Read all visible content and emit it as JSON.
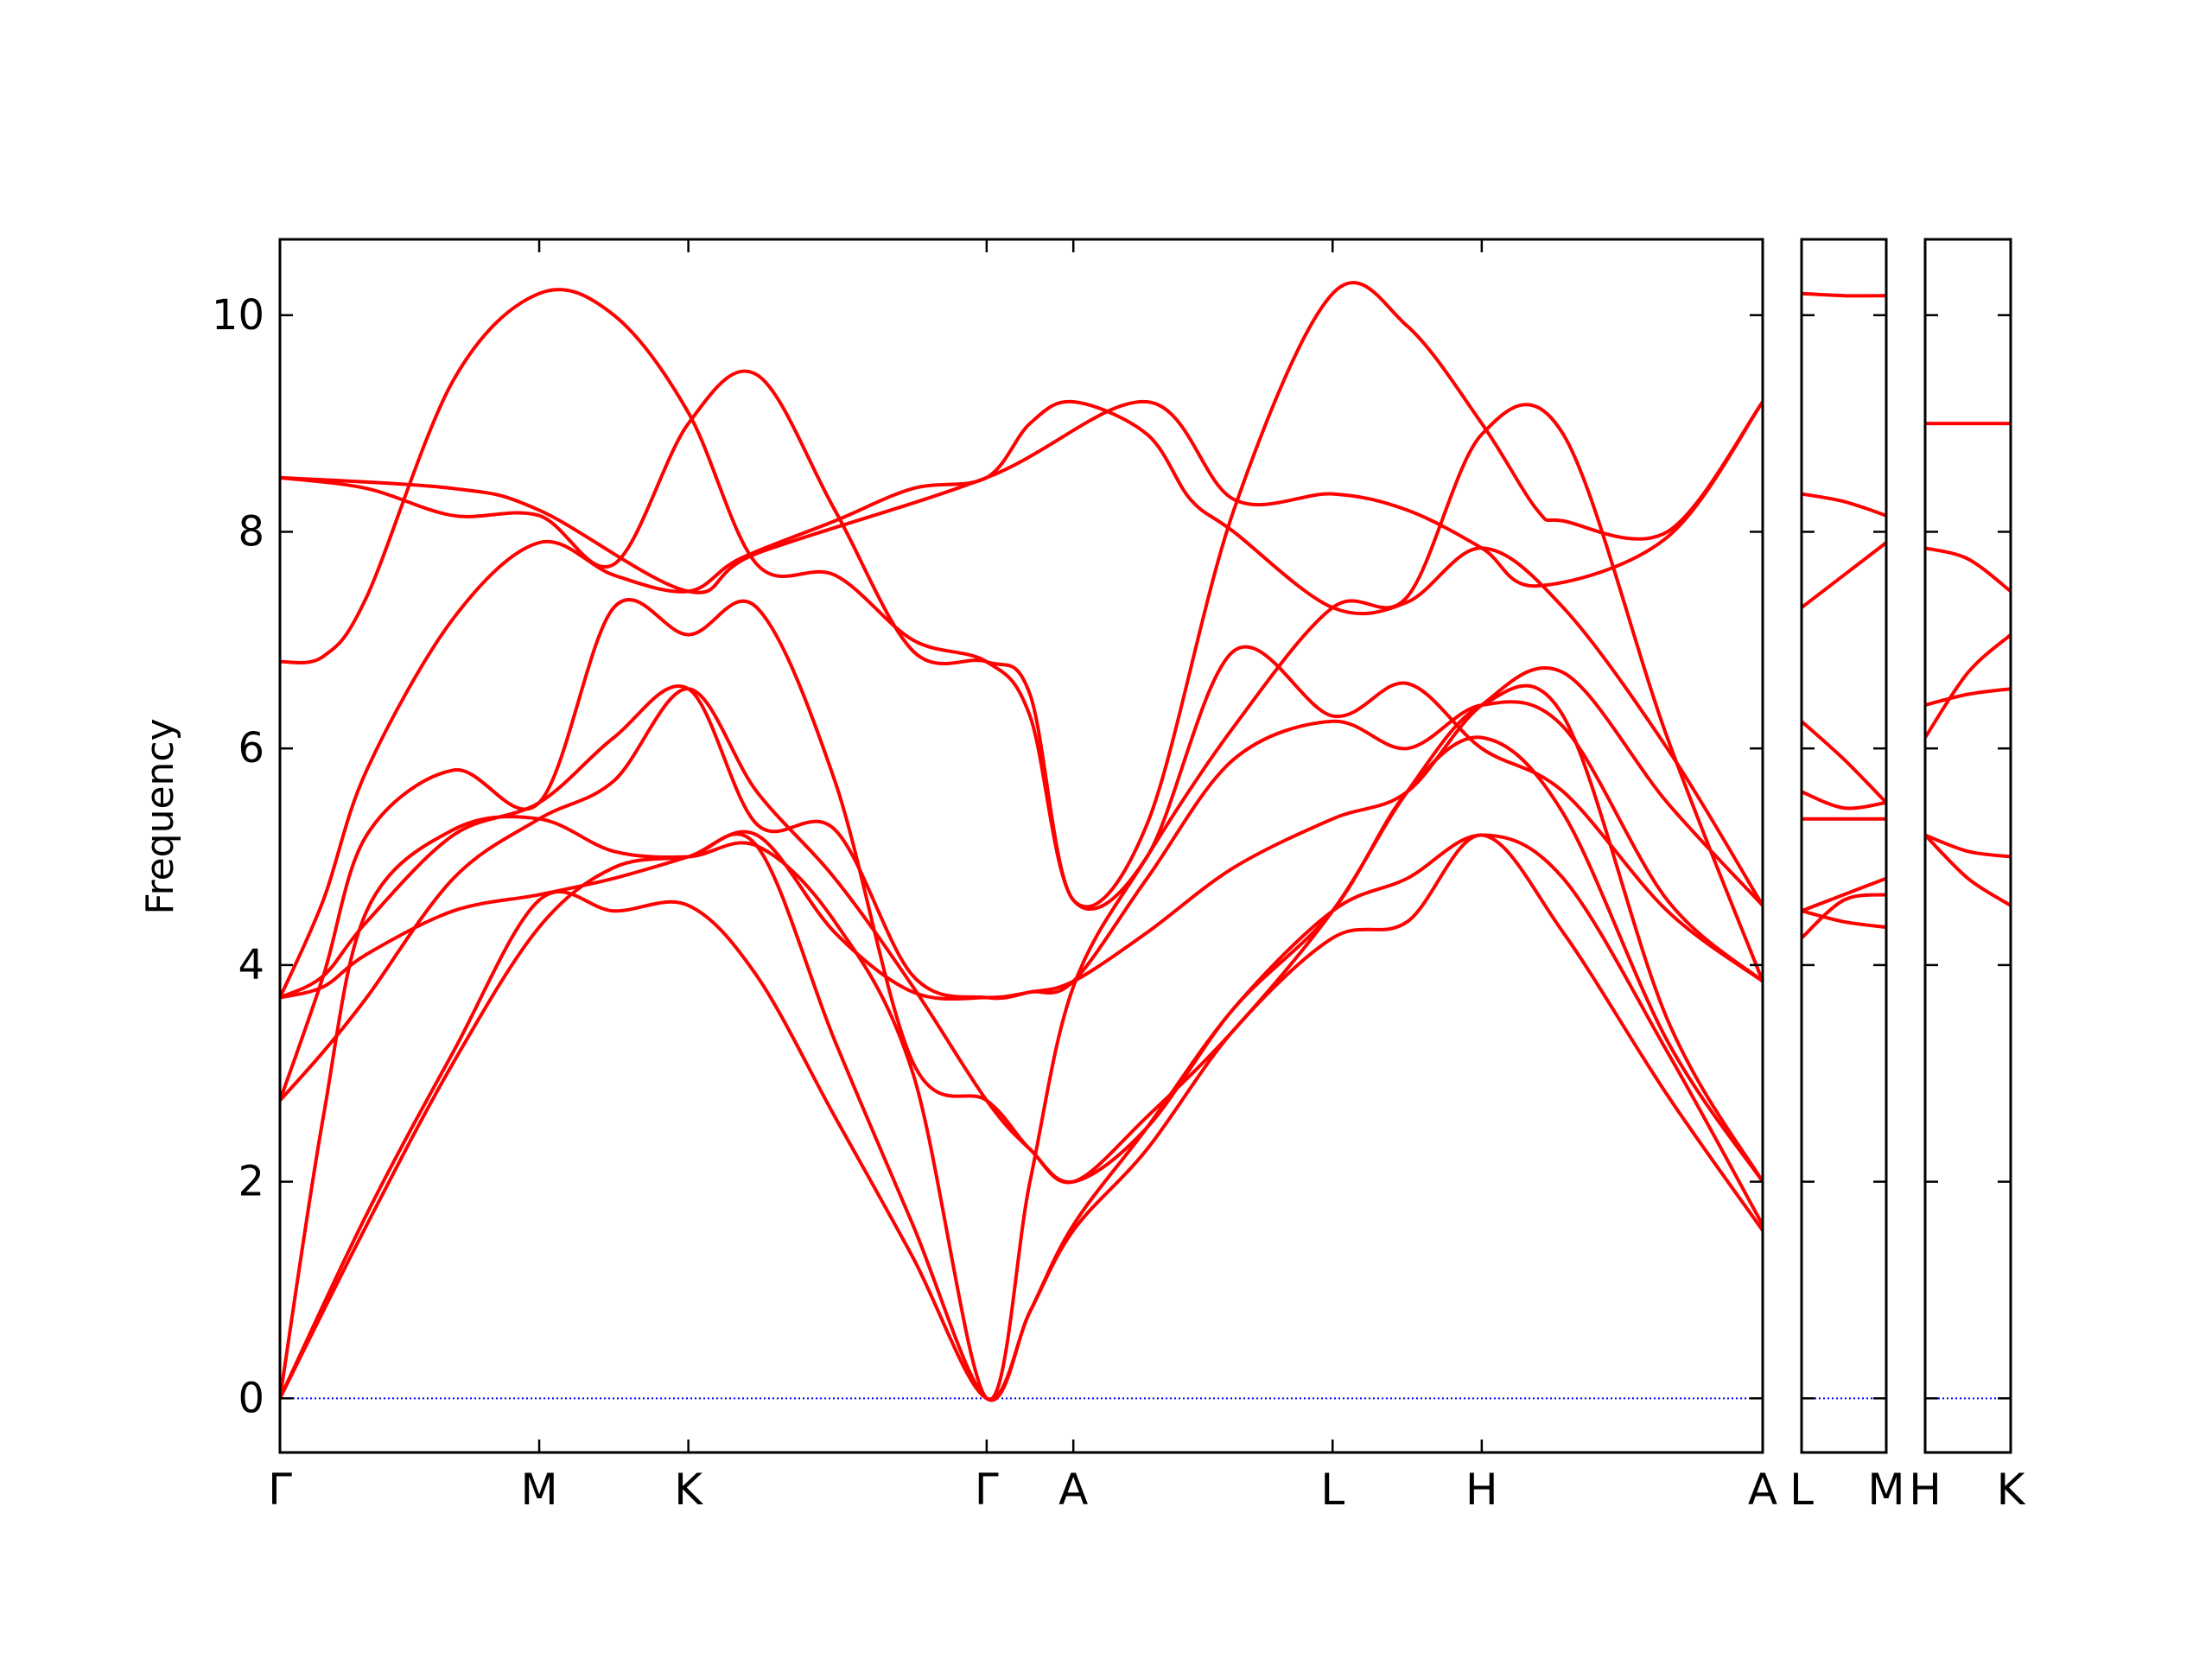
{
  "chart_data": {
    "type": "line",
    "ylabel": "Frequency",
    "ylim": [
      -0.5,
      10.7
    ],
    "yticks": [
      0,
      2,
      4,
      6,
      8,
      10
    ],
    "ytick_labels": [
      "0",
      "2",
      "4",
      "6",
      "8",
      "10"
    ],
    "grid": false,
    "line_color": "#ff0000",
    "zero_line_color": "#0000ff",
    "panels": [
      {
        "range": [
          0,
          1.71
        ],
        "ticks": [
          {
            "x": 0,
            "label": "Γ"
          },
          {
            "x": 0.299,
            "label": "M"
          },
          {
            "x": 0.471,
            "label": "K"
          },
          {
            "x": 0.815,
            "label": "Γ"
          },
          {
            "x": 0.915,
            "label": "A"
          },
          {
            "x": 1.214,
            "label": "L"
          },
          {
            "x": 1.386,
            "label": "H"
          },
          {
            "x": 1.71,
            "label": "A"
          }
        ],
        "series": [
          {
            "x": [
              0,
              0.1,
              0.2,
              0.299,
              0.385,
              0.471,
              0.55,
              0.64,
              0.73,
              0.815,
              0.865,
              0.915,
              1.0,
              1.1,
              1.214,
              1.3,
              1.386,
              1.48,
              1.6,
              1.71
            ],
            "y": [
              0,
              1.6,
              3.1,
              4.35,
              4.9,
              5.0,
              5.1,
              3.3,
              1.6,
              0,
              0.8,
              1.55,
              2.3,
              3.4,
              4.25,
              4.4,
              5.2,
              4.3,
              2.8,
              1.55
            ]
          },
          {
            "x": [
              0,
              0.1,
              0.2,
              0.299,
              0.385,
              0.471,
              0.55,
              0.64,
              0.73,
              0.815,
              0.865,
              0.915,
              1.0,
              1.1,
              1.214,
              1.3,
              1.386,
              1.48,
              1.6,
              1.71
            ],
            "y": [
              0,
              1.7,
              3.2,
              4.6,
              4.5,
              4.55,
              3.9,
              2.6,
              1.3,
              0,
              0.8,
              1.6,
              2.5,
              3.6,
              4.5,
              4.8,
              5.2,
              4.8,
              3.2,
              1.6
            ]
          },
          {
            "x": [
              0,
              0.05,
              0.1,
              0.2,
              0.299,
              0.385,
              0.471,
              0.55,
              0.64,
              0.73,
              0.815,
              0.865,
              0.915,
              1.0,
              1.1,
              1.214,
              1.3,
              1.386,
              1.48,
              1.6,
              1.71
            ],
            "y": [
              0,
              2.6,
              4.5,
              5.25,
              5.35,
              5.05,
              5.0,
              5.1,
              4.4,
              3.0,
              0,
              2.0,
              3.8,
              5.0,
              6.2,
              7.3,
              7.4,
              8.9,
              8.9,
              6.1,
              3.85
            ]
          },
          {
            "x": [
              0,
              0.05,
              0.1,
              0.2,
              0.299,
              0.385,
              0.471,
              0.55,
              0.64,
              0.73,
              0.815,
              0.865,
              0.915,
              1.0,
              1.1,
              1.214,
              1.3,
              1.386,
              1.48,
              1.6,
              1.71
            ],
            "y": [
              3.7,
              3.8,
              4.1,
              4.5,
              4.65,
              4.8,
              5.0,
              5.2,
              4.3,
              3.75,
              3.7,
              3.75,
              3.85,
              4.3,
              4.9,
              5.35,
              5.6,
              6.4,
              6.7,
              5.5,
              4.55
            ]
          },
          {
            "x": [
              0,
              0.05,
              0.1,
              0.2,
              0.299,
              0.385,
              0.471,
              0.55,
              0.64,
              0.73,
              0.815,
              0.865,
              0.915,
              1.0,
              1.1,
              1.214,
              1.3,
              1.386,
              1.48,
              1.6,
              1.71
            ],
            "y": [
              3.7,
              3.9,
              4.4,
              5.2,
              5.5,
              6.1,
              6.55,
              5.3,
              5.25,
              3.9,
              3.7,
              3.75,
              3.85,
              4.8,
              5.9,
              6.25,
              6.0,
              6.4,
              6.2,
              4.6,
              3.85
            ]
          },
          {
            "x": [
              0,
              0.05,
              0.1,
              0.2,
              0.299,
              0.385,
              0.471,
              0.55,
              0.64,
              0.73,
              0.815,
              0.865,
              0.915,
              1.0,
              1.1,
              1.214,
              1.3,
              1.386,
              1.48,
              1.6,
              1.71
            ],
            "y": [
              2.75,
              3.2,
              3.7,
              4.8,
              5.35,
              5.7,
              6.55,
              5.6,
              4.8,
              3.8,
              2.75,
              2.3,
              2.0,
              2.5,
              3.6,
              4.5,
              5.6,
              6.1,
              5.4,
              3.3,
              2.0
            ]
          },
          {
            "x": [
              0,
              0.05,
              0.1,
              0.2,
              0.299,
              0.385,
              0.471,
              0.55,
              0.64,
              0.73,
              0.815,
              0.865,
              0.915,
              1.0,
              1.1,
              1.214,
              1.3,
              1.386,
              1.48,
              1.6,
              1.71
            ],
            "y": [
              2.75,
              3.9,
              5.2,
              5.8,
              5.5,
              7.3,
              7.05,
              7.3,
              5.7,
              3.1,
              2.75,
              2.3,
              2.0,
              2.6,
              3.4,
              4.5,
              5.6,
              6.4,
              6.3,
              3.5,
              2.0
            ]
          },
          {
            "x": [
              0,
              0.05,
              0.1,
              0.2,
              0.299,
              0.385,
              0.471,
              0.55,
              0.64,
              0.73,
              0.815,
              0.865,
              0.915,
              1.0,
              1.1,
              1.214,
              1.3,
              1.386,
              1.48,
              1.6,
              1.71
            ],
            "y": [
              6.8,
              6.85,
              7.4,
              9.4,
              10.2,
              10.0,
              9.1,
              7.7,
              7.6,
              7.0,
              6.8,
              6.3,
              4.6,
              5.0,
              6.9,
              6.3,
              6.6,
              6.0,
              5.6,
              4.5,
              3.85
            ]
          },
          {
            "x": [
              0,
              0.05,
              0.1,
              0.2,
              0.299,
              0.385,
              0.471,
              0.53,
              0.64,
              0.73,
              0.815,
              0.865,
              0.915,
              1.0,
              1.05,
              1.1,
              1.214,
              1.3,
              1.386,
              1.48,
              1.6,
              1.71
            ],
            "y": [
              3.7,
              4.6,
              5.8,
              7.2,
              7.9,
              7.6,
              7.45,
              7.75,
              8.1,
              8.4,
              8.5,
              9.0,
              9.2,
              8.9,
              8.3,
              8.0,
              7.3,
              7.35,
              7.85,
              7.3,
              6.0,
              4.55
            ]
          },
          {
            "x": [
              0,
              0.1,
              0.2,
              0.299,
              0.385,
              0.471,
              0.55,
              0.64,
              0.73,
              0.815,
              0.865,
              0.915,
              1.0,
              1.1,
              1.214,
              1.3,
              1.386,
              1.45,
              1.48,
              1.6,
              1.71
            ],
            "y": [
              8.5,
              8.4,
              8.15,
              8.15,
              7.7,
              9.0,
              9.45,
              8.2,
              6.9,
              6.8,
              6.5,
              4.6,
              5.3,
              8.2,
              10.2,
              9.9,
              9.0,
              8.2,
              8.1,
              8.0,
              9.2
            ]
          },
          {
            "x": [
              0,
              0.2,
              0.299,
              0.471,
              0.55,
              0.815,
              1.0,
              1.1,
              1.214,
              1.3,
              1.386,
              1.45,
              1.6,
              1.71
            ],
            "y": [
              8.5,
              8.4,
              8.2,
              7.45,
              7.8,
              8.5,
              9.2,
              8.3,
              8.35,
              8.2,
              7.85,
              7.5,
              7.95,
              9.2
            ]
          }
        ]
      },
      {
        "range": [
          0,
          0.1
        ],
        "ticks": [
          {
            "x": 0,
            "label": "L"
          },
          {
            "x": 0.1,
            "label": "M"
          }
        ],
        "series": [
          {
            "x": [
              0,
              0.05,
              0.1
            ],
            "y": [
              10.2,
              10.18,
              10.18
            ]
          },
          {
            "x": [
              0,
              0.05,
              0.1
            ],
            "y": [
              8.35,
              8.28,
              8.15
            ]
          },
          {
            "x": [
              0,
              0.05,
              0.1
            ],
            "y": [
              7.3,
              7.6,
              7.9
            ]
          },
          {
            "x": [
              0,
              0.05,
              0.1
            ],
            "y": [
              6.25,
              5.9,
              5.5
            ]
          },
          {
            "x": [
              0,
              0.05,
              0.1
            ],
            "y": [
              5.6,
              5.45,
              5.5
            ]
          },
          {
            "x": [
              0,
              0.05,
              0.1
            ],
            "y": [
              5.35,
              5.35,
              5.35
            ]
          },
          {
            "x": [
              0,
              0.05,
              0.1
            ],
            "y": [
              4.5,
              4.65,
              4.8
            ]
          },
          {
            "x": [
              0,
              0.05,
              0.1
            ],
            "y": [
              4.25,
              4.6,
              4.65
            ]
          },
          {
            "x": [
              0,
              0.05,
              0.1
            ],
            "y": [
              4.5,
              4.4,
              4.35
            ]
          }
        ]
      },
      {
        "range": [
          0,
          0.1
        ],
        "ticks": [
          {
            "x": 0,
            "label": "H"
          },
          {
            "x": 0.1,
            "label": "K"
          }
        ],
        "series": [
          {
            "x": [
              0,
              0.05,
              0.1
            ],
            "y": [
              9.0,
              9.0,
              9.0
            ]
          },
          {
            "x": [
              0,
              0.05,
              0.1
            ],
            "y": [
              7.85,
              7.75,
              7.45
            ]
          },
          {
            "x": [
              0,
              0.05,
              0.1
            ],
            "y": [
              6.4,
              6.5,
              6.55
            ]
          },
          {
            "x": [
              0,
              0.05,
              0.1
            ],
            "y": [
              6.1,
              6.7,
              7.05
            ]
          },
          {
            "x": [
              0,
              0.05,
              0.1
            ],
            "y": [
              5.2,
              5.05,
              5.0
            ]
          },
          {
            "x": [
              0,
              0.05,
              0.1
            ],
            "y": [
              5.2,
              4.8,
              4.55
            ]
          }
        ]
      }
    ]
  }
}
